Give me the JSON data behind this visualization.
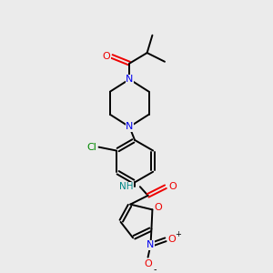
{
  "background_color": "#ebebeb",
  "bond_color": "#000000",
  "N_color": "#0000ee",
  "O_color": "#ee0000",
  "Cl_color": "#008800",
  "NH_color": "#008888",
  "figsize": [
    3.0,
    3.0
  ],
  "dpi": 100,
  "smiles": "O=C(C(C)C)N1CCN(c2ccc(NC(=O)c3ccc([N+](=O)[O-])o3)cc2Cl)CC1"
}
